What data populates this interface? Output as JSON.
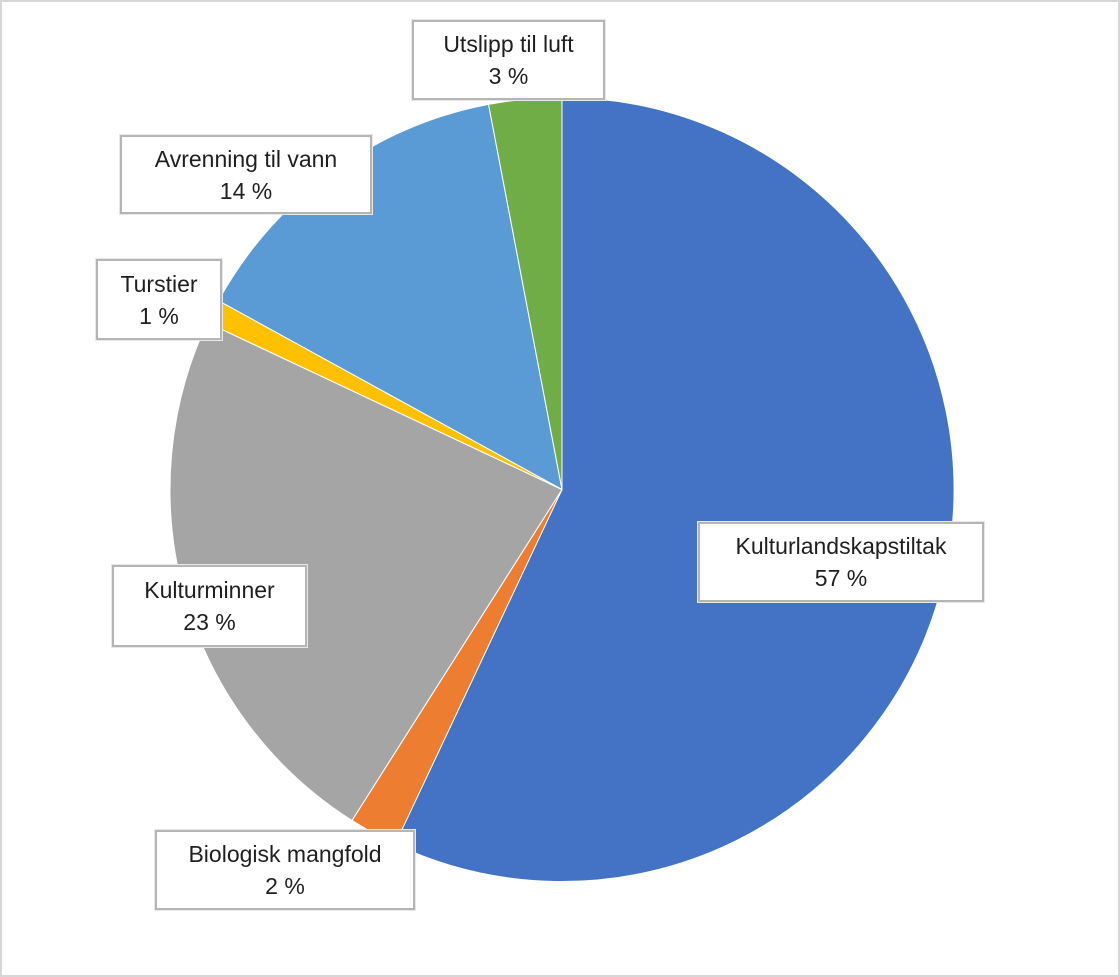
{
  "canvas": {
    "background": "#FFFFFF",
    "border_color": "#D7D7D7"
  },
  "chart_data": {
    "type": "pie",
    "title": "",
    "legend": "none",
    "start_angle_deg": 0,
    "direction": "clockwise",
    "data_label_style": "category name and percentage in white callout boxes with gray borders",
    "slices": [
      {
        "label": "Kulturlandskapstiltak",
        "value": 57,
        "pct_label": "57 %",
        "color": "#4472C4"
      },
      {
        "label": "Biologisk mangfold",
        "value": 2,
        "pct_label": "2 %",
        "color": "#ED7D31"
      },
      {
        "label": "Kulturminner",
        "value": 23,
        "pct_label": "23 %",
        "color": "#A5A5A5"
      },
      {
        "label": "Turstier",
        "value": 1,
        "pct_label": "1 %",
        "color": "#FFC000"
      },
      {
        "label": "Avrenning til vann",
        "value": 14,
        "pct_label": "14 %",
        "color": "#5B9BD5"
      },
      {
        "label": "Utslipp til luft",
        "value": 3,
        "pct_label": "3 %",
        "color": "#70AD47"
      }
    ]
  }
}
